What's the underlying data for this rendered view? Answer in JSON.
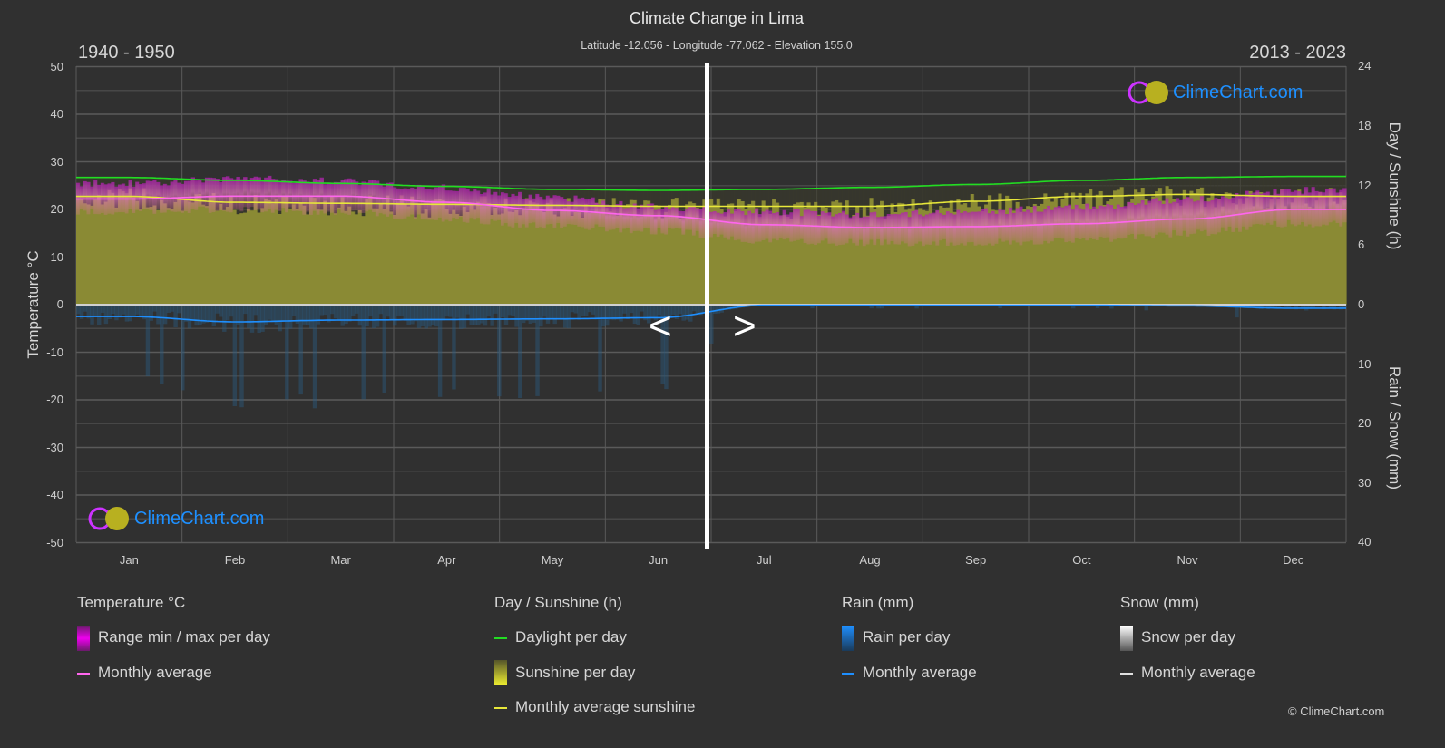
{
  "chart_data": {
    "type": "area",
    "title": "Climate Change in Lima",
    "subtitle": "Latitude -12.056 - Longitude -77.062 - Elevation 155.0",
    "period_left": "1940 - 1950",
    "period_right": "2013 - 2023",
    "categories": [
      "Jan",
      "Feb",
      "Mar",
      "Apr",
      "May",
      "Jun",
      "Jul",
      "Aug",
      "Sep",
      "Oct",
      "Nov",
      "Dec"
    ],
    "left_axis": {
      "label": "Temperature °C",
      "ylim": [
        -50,
        50
      ],
      "ticks": [
        "50",
        "40",
        "30",
        "20",
        "10",
        "0",
        "-10",
        "-20",
        "-30",
        "-40",
        "-50"
      ]
    },
    "right_axis_top": {
      "label": "Day / Sunshine (h)",
      "ylim": [
        0,
        24
      ],
      "ticks": [
        "24",
        "18",
        "12",
        "6",
        "0"
      ]
    },
    "right_axis_bottom": {
      "label": "Rain / Snow (mm)",
      "ylim": [
        0,
        40
      ],
      "ticks": [
        "10",
        "20",
        "30",
        "40"
      ]
    },
    "grid": true,
    "series": [
      {
        "name": "Daylight per day",
        "unit": "h",
        "color": "#22dd22",
        "values": [
          12.8,
          12.5,
          12.2,
          11.9,
          11.6,
          11.5,
          11.6,
          11.8,
          12.1,
          12.5,
          12.8,
          12.9
        ]
      },
      {
        "name": "Monthly average sunshine",
        "unit": "h",
        "color": "#e8e83a",
        "values": [
          10.9,
          10.3,
          10.2,
          10.1,
          10.0,
          9.9,
          9.9,
          9.9,
          10.4,
          10.9,
          11.1,
          10.9
        ]
      },
      {
        "name": "Temperature monthly average",
        "unit": "°C",
        "color": "#ff66ee",
        "values": [
          22.2,
          22.8,
          22.8,
          21.5,
          19.8,
          18.7,
          16.8,
          16.2,
          16.4,
          17.0,
          18.0,
          20.0
        ]
      },
      {
        "name": "Temperature max",
        "unit": "°C",
        "values": [
          25.5,
          26.5,
          26.0,
          24.5,
          22.5,
          20.5,
          19.5,
          19.0,
          19.5,
          20.5,
          22.0,
          24.0
        ]
      },
      {
        "name": "Temperature min",
        "unit": "°C",
        "values": [
          19.5,
          20.0,
          19.5,
          18.0,
          16.5,
          15.5,
          13.5,
          13.0,
          13.0,
          13.5,
          15.0,
          17.0
        ]
      },
      {
        "name": "Rain monthly average",
        "unit": "mm",
        "color": "#1e8fff",
        "values": [
          2.0,
          2.9,
          2.6,
          2.5,
          2.4,
          2.2,
          0.1,
          0.1,
          0.1,
          0.1,
          0.2,
          0.6
        ]
      }
    ],
    "divider_month_index": 6,
    "navigation": {
      "prev": "<",
      "next": ">"
    }
  },
  "legend": {
    "temperature": {
      "title": "Temperature °C",
      "range": "Range min / max per day",
      "avg": "Monthly average"
    },
    "sun": {
      "title": "Day / Sunshine (h)",
      "daylight": "Daylight per day",
      "sunshine": "Sunshine per day",
      "avg": "Monthly average sunshine"
    },
    "rain": {
      "title": "Rain (mm)",
      "per_day": "Rain per day",
      "avg": "Monthly average"
    },
    "snow": {
      "title": "Snow (mm)",
      "per_day": "Snow per day",
      "avg": "Monthly average"
    }
  },
  "logo": "ClimeChart.com",
  "copyright": "© ClimeChart.com"
}
